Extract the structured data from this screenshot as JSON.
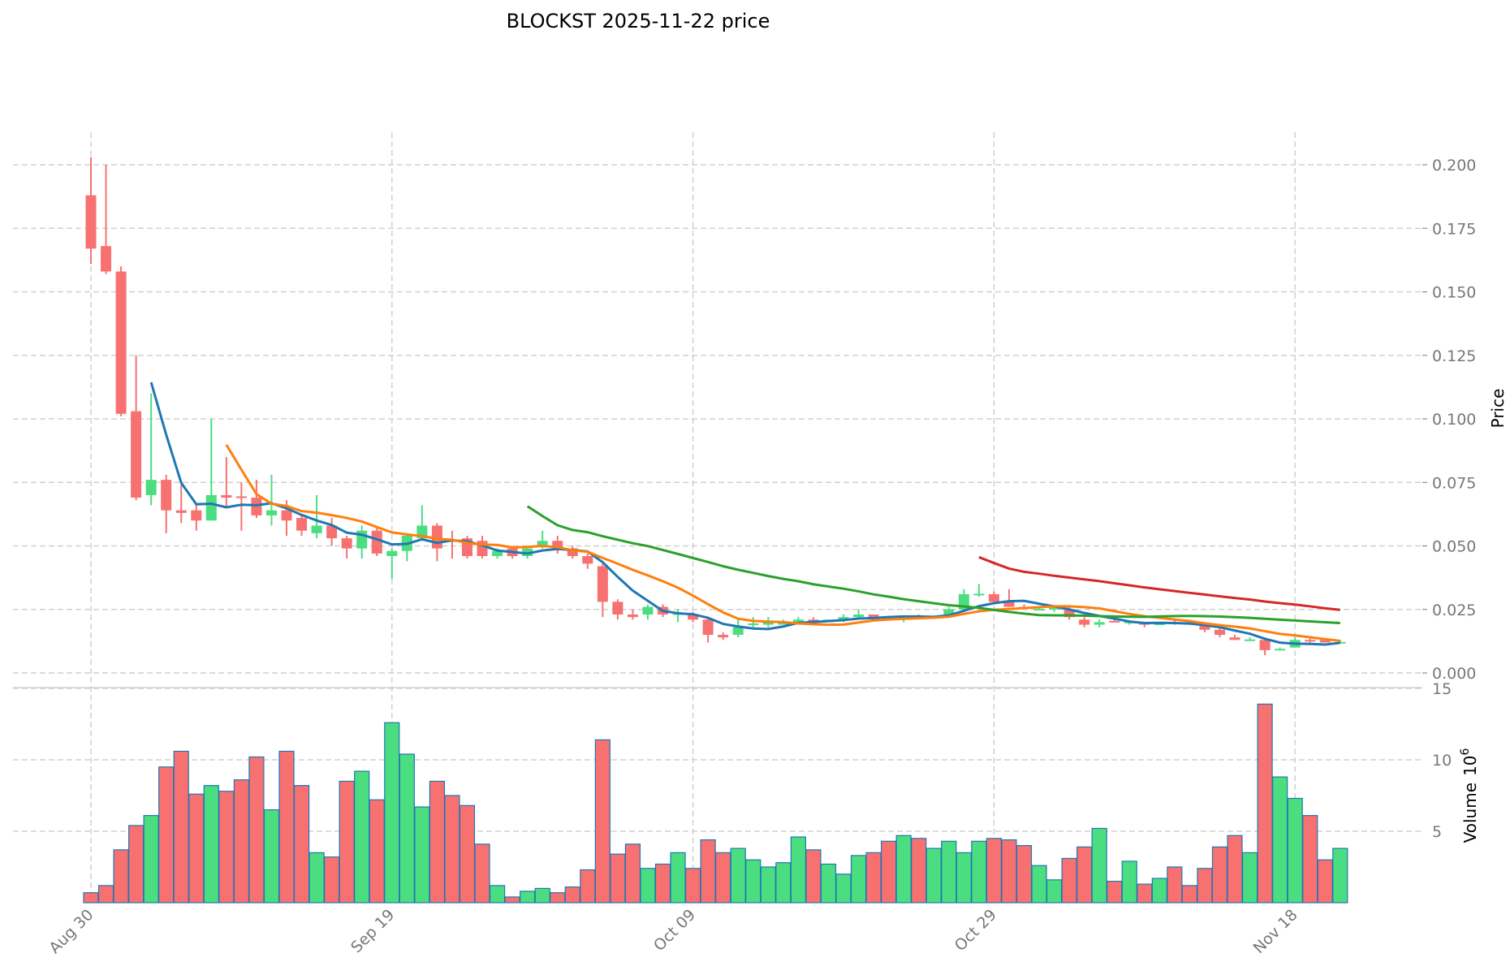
{
  "title": "BLOCKST  2025-11-22  price",
  "chart_data": {
    "type": "candlestick",
    "title": "BLOCKST  2025-11-22  price",
    "ylabel": "Price",
    "volume_label": "Volume",
    "volume_unit": "10",
    "volume_exp": "6",
    "ylim": [
      -0.005,
      0.213
    ],
    "volume_ylim": [
      0,
      15
    ],
    "price_ticks": [
      "0.000",
      "0.025",
      "0.050",
      "0.075",
      "0.100",
      "0.125",
      "0.150",
      "0.175",
      "0.200"
    ],
    "volume_ticks": [
      "5",
      "10",
      "15"
    ],
    "x_ticks": [
      {
        "label": "Aug 30",
        "index": 0
      },
      {
        "label": "Sep 19",
        "index": 20
      },
      {
        "label": "Oct 09",
        "index": 40
      },
      {
        "label": "Oct 29",
        "index": 60
      },
      {
        "label": "Nov 18",
        "index": 80
      }
    ],
    "grid": true,
    "colors": {
      "up": "#4ade80",
      "down": "#f87171",
      "edge": "#1f77b4",
      "ma5": "#1f77b4",
      "ma10": "#ff7f0e",
      "ma30": "#2ca02c",
      "ma60": "#d62728"
    },
    "moving_averages": [
      5,
      10,
      30,
      60
    ],
    "start_date": "2025-08-30",
    "ohlc": [
      [
        0.188,
        0.203,
        0.161,
        0.167
      ],
      [
        0.168,
        0.2,
        0.157,
        0.158
      ],
      [
        0.158,
        0.16,
        0.101,
        0.102
      ],
      [
        0.103,
        0.125,
        0.068,
        0.069
      ],
      [
        0.07,
        0.11,
        0.066,
        0.076
      ],
      [
        0.076,
        0.078,
        0.055,
        0.064
      ],
      [
        0.064,
        0.074,
        0.059,
        0.063
      ],
      [
        0.064,
        0.066,
        0.056,
        0.06
      ],
      [
        0.06,
        0.1,
        0.06,
        0.07
      ],
      [
        0.07,
        0.085,
        0.065,
        0.069
      ],
      [
        0.0695,
        0.075,
        0.056,
        0.069
      ],
      [
        0.069,
        0.076,
        0.061,
        0.062
      ],
      [
        0.062,
        0.078,
        0.058,
        0.064
      ],
      [
        0.064,
        0.068,
        0.054,
        0.06
      ],
      [
        0.061,
        0.062,
        0.054,
        0.056
      ],
      [
        0.055,
        0.07,
        0.053,
        0.058
      ],
      [
        0.058,
        0.061,
        0.05,
        0.053
      ],
      [
        0.053,
        0.054,
        0.045,
        0.049
      ],
      [
        0.049,
        0.058,
        0.045,
        0.056
      ],
      [
        0.056,
        0.057,
        0.046,
        0.047
      ],
      [
        0.046,
        0.049,
        0.037,
        0.048
      ],
      [
        0.048,
        0.055,
        0.044,
        0.054
      ],
      [
        0.053,
        0.066,
        0.052,
        0.058
      ],
      [
        0.058,
        0.059,
        0.044,
        0.049
      ],
      [
        0.0525,
        0.056,
        0.045,
        0.052
      ],
      [
        0.053,
        0.054,
        0.045,
        0.046
      ],
      [
        0.052,
        0.054,
        0.045,
        0.046
      ],
      [
        0.046,
        0.049,
        0.045,
        0.048
      ],
      [
        0.049,
        0.05,
        0.045,
        0.046
      ],
      [
        0.046,
        0.05,
        0.045,
        0.049
      ],
      [
        0.05,
        0.056,
        0.049,
        0.052
      ],
      [
        0.052,
        0.054,
        0.047,
        0.049
      ],
      [
        0.049,
        0.05,
        0.045,
        0.046
      ],
      [
        0.046,
        0.047,
        0.041,
        0.043
      ],
      [
        0.042,
        0.043,
        0.022,
        0.028
      ],
      [
        0.028,
        0.029,
        0.021,
        0.023
      ],
      [
        0.023,
        0.025,
        0.021,
        0.022
      ],
      [
        0.023,
        0.027,
        0.021,
        0.026
      ],
      [
        0.026,
        0.027,
        0.022,
        0.023
      ],
      [
        0.023,
        0.025,
        0.02,
        0.0235
      ],
      [
        0.023,
        0.024,
        0.02,
        0.021
      ],
      [
        0.021,
        0.022,
        0.012,
        0.015
      ],
      [
        0.015,
        0.016,
        0.013,
        0.014
      ],
      [
        0.015,
        0.021,
        0.014,
        0.018
      ],
      [
        0.019,
        0.022,
        0.018,
        0.0195
      ],
      [
        0.019,
        0.022,
        0.018,
        0.02
      ],
      [
        0.019,
        0.021,
        0.019,
        0.02
      ],
      [
        0.02,
        0.022,
        0.019,
        0.021
      ],
      [
        0.021,
        0.022,
        0.019,
        0.02
      ],
      [
        0.02,
        0.021,
        0.02,
        0.021
      ],
      [
        0.021,
        0.023,
        0.02,
        0.022
      ],
      [
        0.022,
        0.025,
        0.021,
        0.023
      ],
      [
        0.023,
        0.023,
        0.021,
        0.022
      ],
      [
        0.0222,
        0.0225,
        0.021,
        0.022
      ],
      [
        0.022,
        0.022,
        0.02,
        0.0222
      ],
      [
        0.0222,
        0.023,
        0.022,
        0.022
      ],
      [
        0.022,
        0.0225,
        0.022,
        0.0222
      ],
      [
        0.022,
        0.026,
        0.022,
        0.025
      ],
      [
        0.025,
        0.033,
        0.024,
        0.031
      ],
      [
        0.031,
        0.035,
        0.03,
        0.0312
      ],
      [
        0.031,
        0.032,
        0.027,
        0.028
      ],
      [
        0.028,
        0.033,
        0.026,
        0.026
      ],
      [
        0.026,
        0.027,
        0.025,
        0.0258
      ],
      [
        0.025,
        0.026,
        0.025,
        0.0252
      ],
      [
        0.025,
        0.026,
        0.024,
        0.026
      ],
      [
        0.025,
        0.026,
        0.021,
        0.022
      ],
      [
        0.021,
        0.022,
        0.018,
        0.019
      ],
      [
        0.019,
        0.021,
        0.018,
        0.02
      ],
      [
        0.0205,
        0.021,
        0.02,
        0.02
      ],
      [
        0.02,
        0.0205,
        0.019,
        0.0202
      ],
      [
        0.02,
        0.02,
        0.018,
        0.019
      ],
      [
        0.019,
        0.02,
        0.019,
        0.0195
      ],
      [
        0.02,
        0.021,
        0.019,
        0.0195
      ],
      [
        0.02,
        0.02,
        0.019,
        0.019
      ],
      [
        0.019,
        0.02,
        0.016,
        0.017
      ],
      [
        0.017,
        0.018,
        0.014,
        0.015
      ],
      [
        0.014,
        0.015,
        0.013,
        0.013
      ],
      [
        0.013,
        0.014,
        0.013,
        0.0132
      ],
      [
        0.013,
        0.014,
        0.007,
        0.009
      ],
      [
        0.009,
        0.01,
        0.009,
        0.0095
      ],
      [
        0.01,
        0.014,
        0.01,
        0.013
      ],
      [
        0.013,
        0.014,
        0.012,
        0.0125
      ],
      [
        0.013,
        0.013,
        0.012,
        0.012
      ],
      [
        0.012,
        0.013,
        0.012,
        0.0122
      ]
    ],
    "volume": [
      0.7,
      1.2,
      3.7,
      5.4,
      6.1,
      9.5,
      10.6,
      7.6,
      8.2,
      7.8,
      8.6,
      10.2,
      6.5,
      10.6,
      8.2,
      3.5,
      3.2,
      8.5,
      9.2,
      7.2,
      12.6,
      10.4,
      6.7,
      8.5,
      7.5,
      6.8,
      4.1,
      1.2,
      0.4,
      0.8,
      1.0,
      0.7,
      1.1,
      2.3,
      11.4,
      3.4,
      4.1,
      2.4,
      2.7,
      3.5,
      2.4,
      4.4,
      3.5,
      3.8,
      3.0,
      2.5,
      2.8,
      4.6,
      3.7,
      2.7,
      2.0,
      3.3,
      3.5,
      4.3,
      4.7,
      4.5,
      3.8,
      4.3,
      3.5,
      4.3,
      4.5,
      4.4,
      4.0,
      2.6,
      1.6,
      3.1,
      3.9,
      5.2,
      1.5,
      2.9,
      1.3,
      1.7,
      2.5,
      1.2,
      2.4,
      3.9,
      4.7,
      3.5,
      13.9,
      8.8,
      7.3,
      6.1,
      3.0,
      3.8
    ]
  }
}
